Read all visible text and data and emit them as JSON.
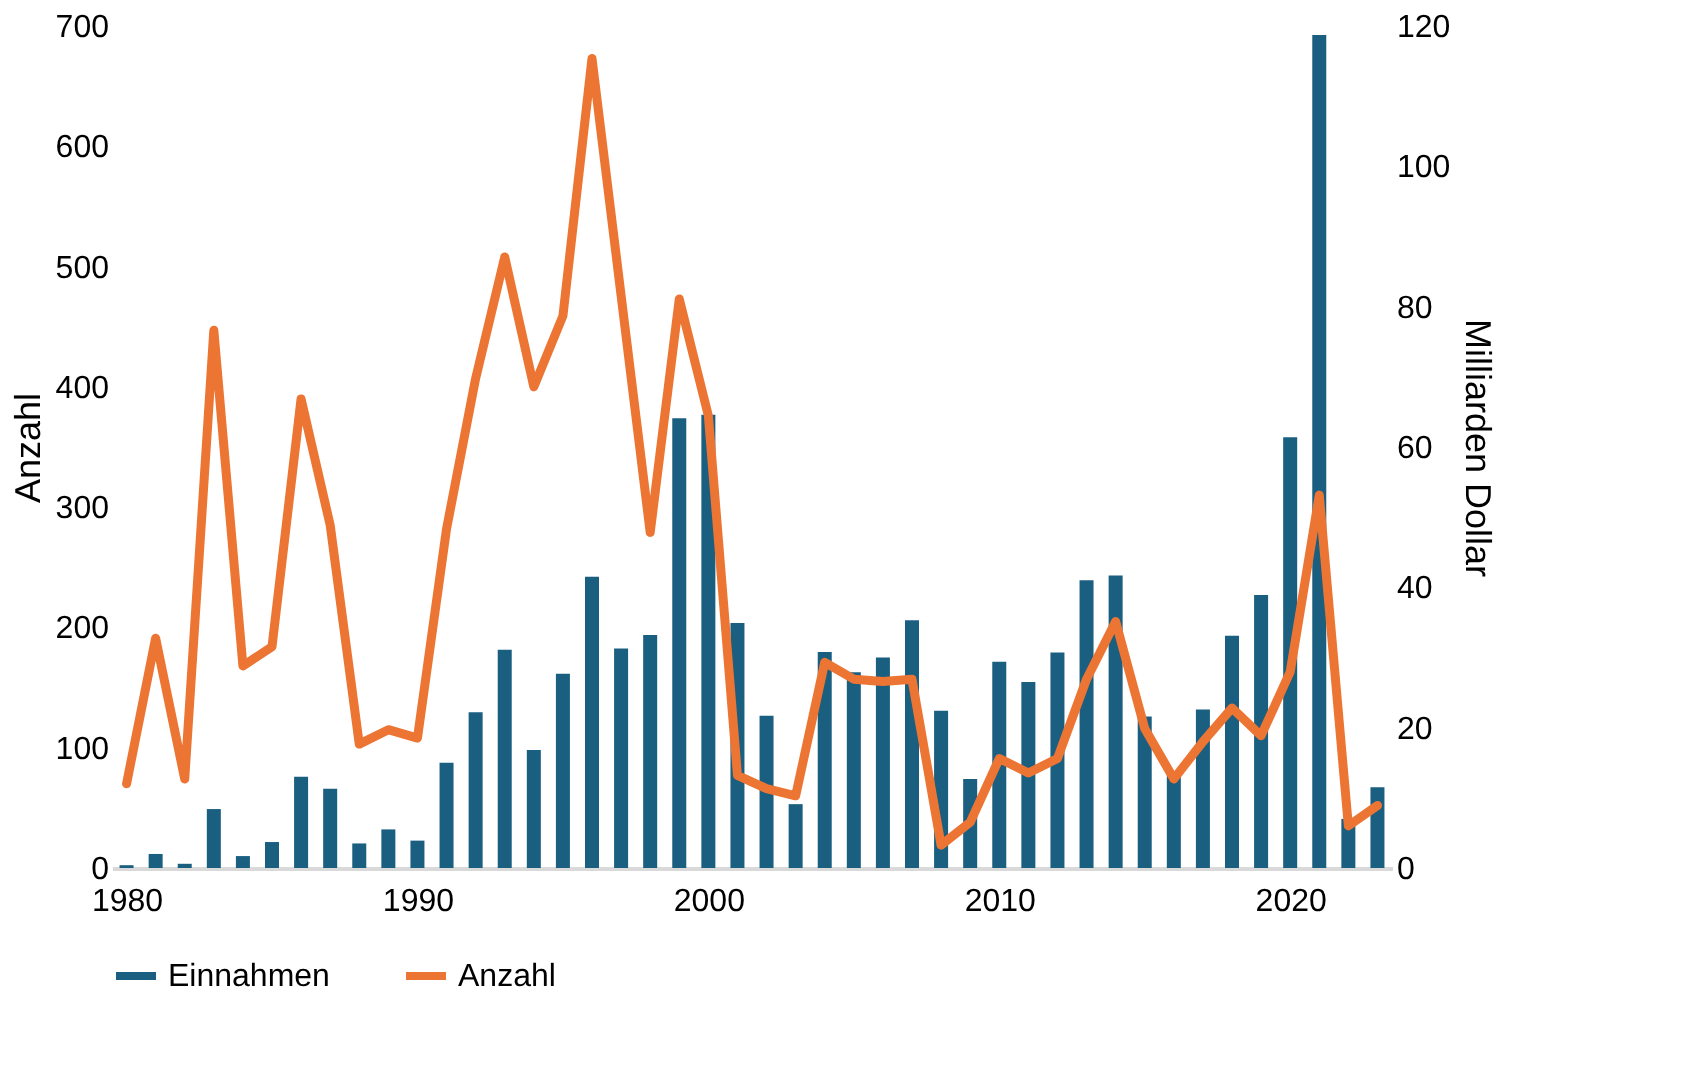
{
  "chart_data": {
    "type": "bar",
    "xlabel": null,
    "ylabel": "Anzahl",
    "y2label": "Milliarden Dollar",
    "x": [
      1980,
      1981,
      1982,
      1983,
      1984,
      1985,
      1986,
      1987,
      1988,
      1989,
      1990,
      1991,
      1992,
      1993,
      1994,
      1995,
      1996,
      1997,
      1998,
      1999,
      2000,
      2001,
      2002,
      2003,
      2004,
      2005,
      2006,
      2007,
      2008,
      2009,
      2010,
      2011,
      2012,
      2013,
      2014,
      2015,
      2016,
      2017,
      2018,
      2019,
      2020,
      2021,
      2022,
      2023
    ],
    "series": [
      {
        "name": "Einnahmen",
        "axis": "y2",
        "color": "#1a5e80",
        "values": [
          0.4,
          2.0,
          0.6,
          8.4,
          1.7,
          3.7,
          13.0,
          11.3,
          3.5,
          5.5,
          3.9,
          15.0,
          22.2,
          31.1,
          16.8,
          27.7,
          41.5,
          31.3,
          33.2,
          64.1,
          64.6,
          34.9,
          21.7,
          9.1,
          30.8,
          27.9,
          30.0,
          35.3,
          22.4,
          12.7,
          29.4,
          26.5,
          30.7,
          41.0,
          41.7,
          21.6,
          13.2,
          22.6,
          33.1,
          38.9,
          61.4,
          118.7,
          7,
          11.5
        ]
      },
      {
        "name": "Anzahl",
        "type": "line",
        "axis": "y",
        "color": "#ec7534",
        "values": [
          70,
          191,
          74,
          447,
          168,
          184,
          390,
          285,
          103,
          115,
          108,
          282,
          407,
          508,
          400,
          459,
          673,
          476,
          279,
          473,
          376,
          77,
          66,
          60,
          171,
          157,
          155,
          157,
          19,
          38,
          91,
          79,
          91,
          157,
          205,
          116,
          74,
          105,
          133,
          110,
          163,
          310,
          35,
          52
        ]
      }
    ],
    "xlim": [
      1979.5,
      2023.5
    ],
    "xticks": [
      1980,
      1990,
      2000,
      2010,
      2020
    ],
    "ylim": [
      0,
      700
    ],
    "yticks": [
      0,
      100,
      200,
      300,
      400,
      500,
      600,
      700
    ],
    "y2lim": [
      0,
      120
    ],
    "y2ticks": [
      0,
      20,
      40,
      60,
      80,
      100,
      120
    ],
    "grid": false,
    "legend": "bottom",
    "line_style": "solid",
    "marker": "none"
  }
}
